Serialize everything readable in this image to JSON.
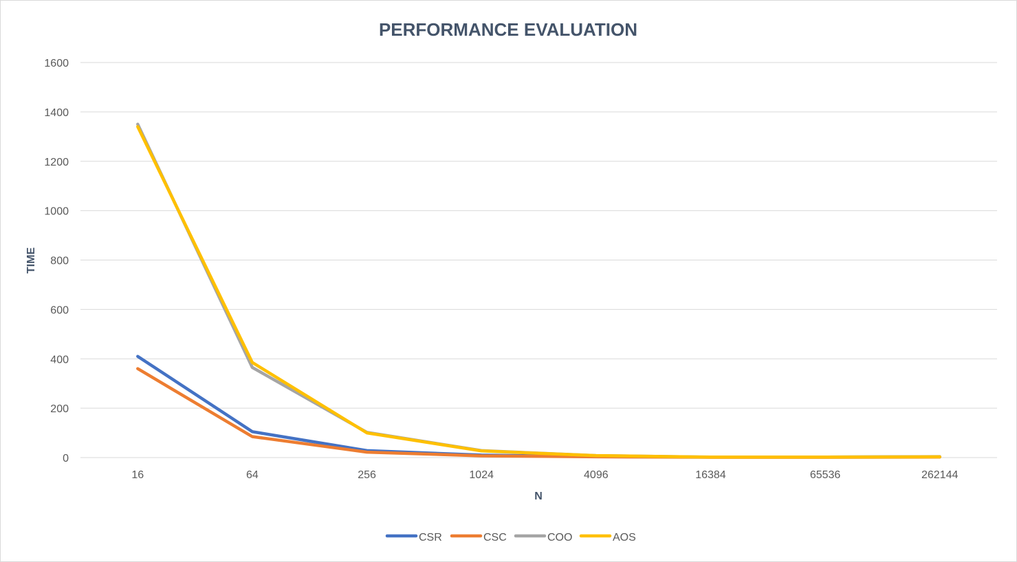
{
  "chart_data": {
    "type": "line",
    "title": "PERFORMANCE EVALUATION",
    "xlabel": "N",
    "ylabel": "TIME",
    "categories": [
      "16",
      "64",
      "256",
      "1024",
      "4096",
      "16384",
      "65536",
      "262144"
    ],
    "ylim": [
      0,
      1600
    ],
    "yticks": [
      0,
      200,
      400,
      600,
      800,
      1000,
      1200,
      1400,
      1600
    ],
    "grid": true,
    "legend": "bottom",
    "series": [
      {
        "name": "CSR",
        "color": "#4472c4",
        "values": [
          410,
          105,
          28,
          10,
          4,
          2,
          2,
          3
        ]
      },
      {
        "name": "CSC",
        "color": "#ed7d31",
        "values": [
          360,
          85,
          22,
          7,
          3,
          1,
          1,
          2
        ]
      },
      {
        "name": "COO",
        "color": "#a5a5a5",
        "values": [
          1350,
          365,
          102,
          28,
          8,
          2,
          2,
          4
        ]
      },
      {
        "name": "AOS",
        "color": "#ffc000",
        "values": [
          1340,
          385,
          100,
          27,
          8,
          2,
          2,
          3
        ]
      }
    ]
  }
}
